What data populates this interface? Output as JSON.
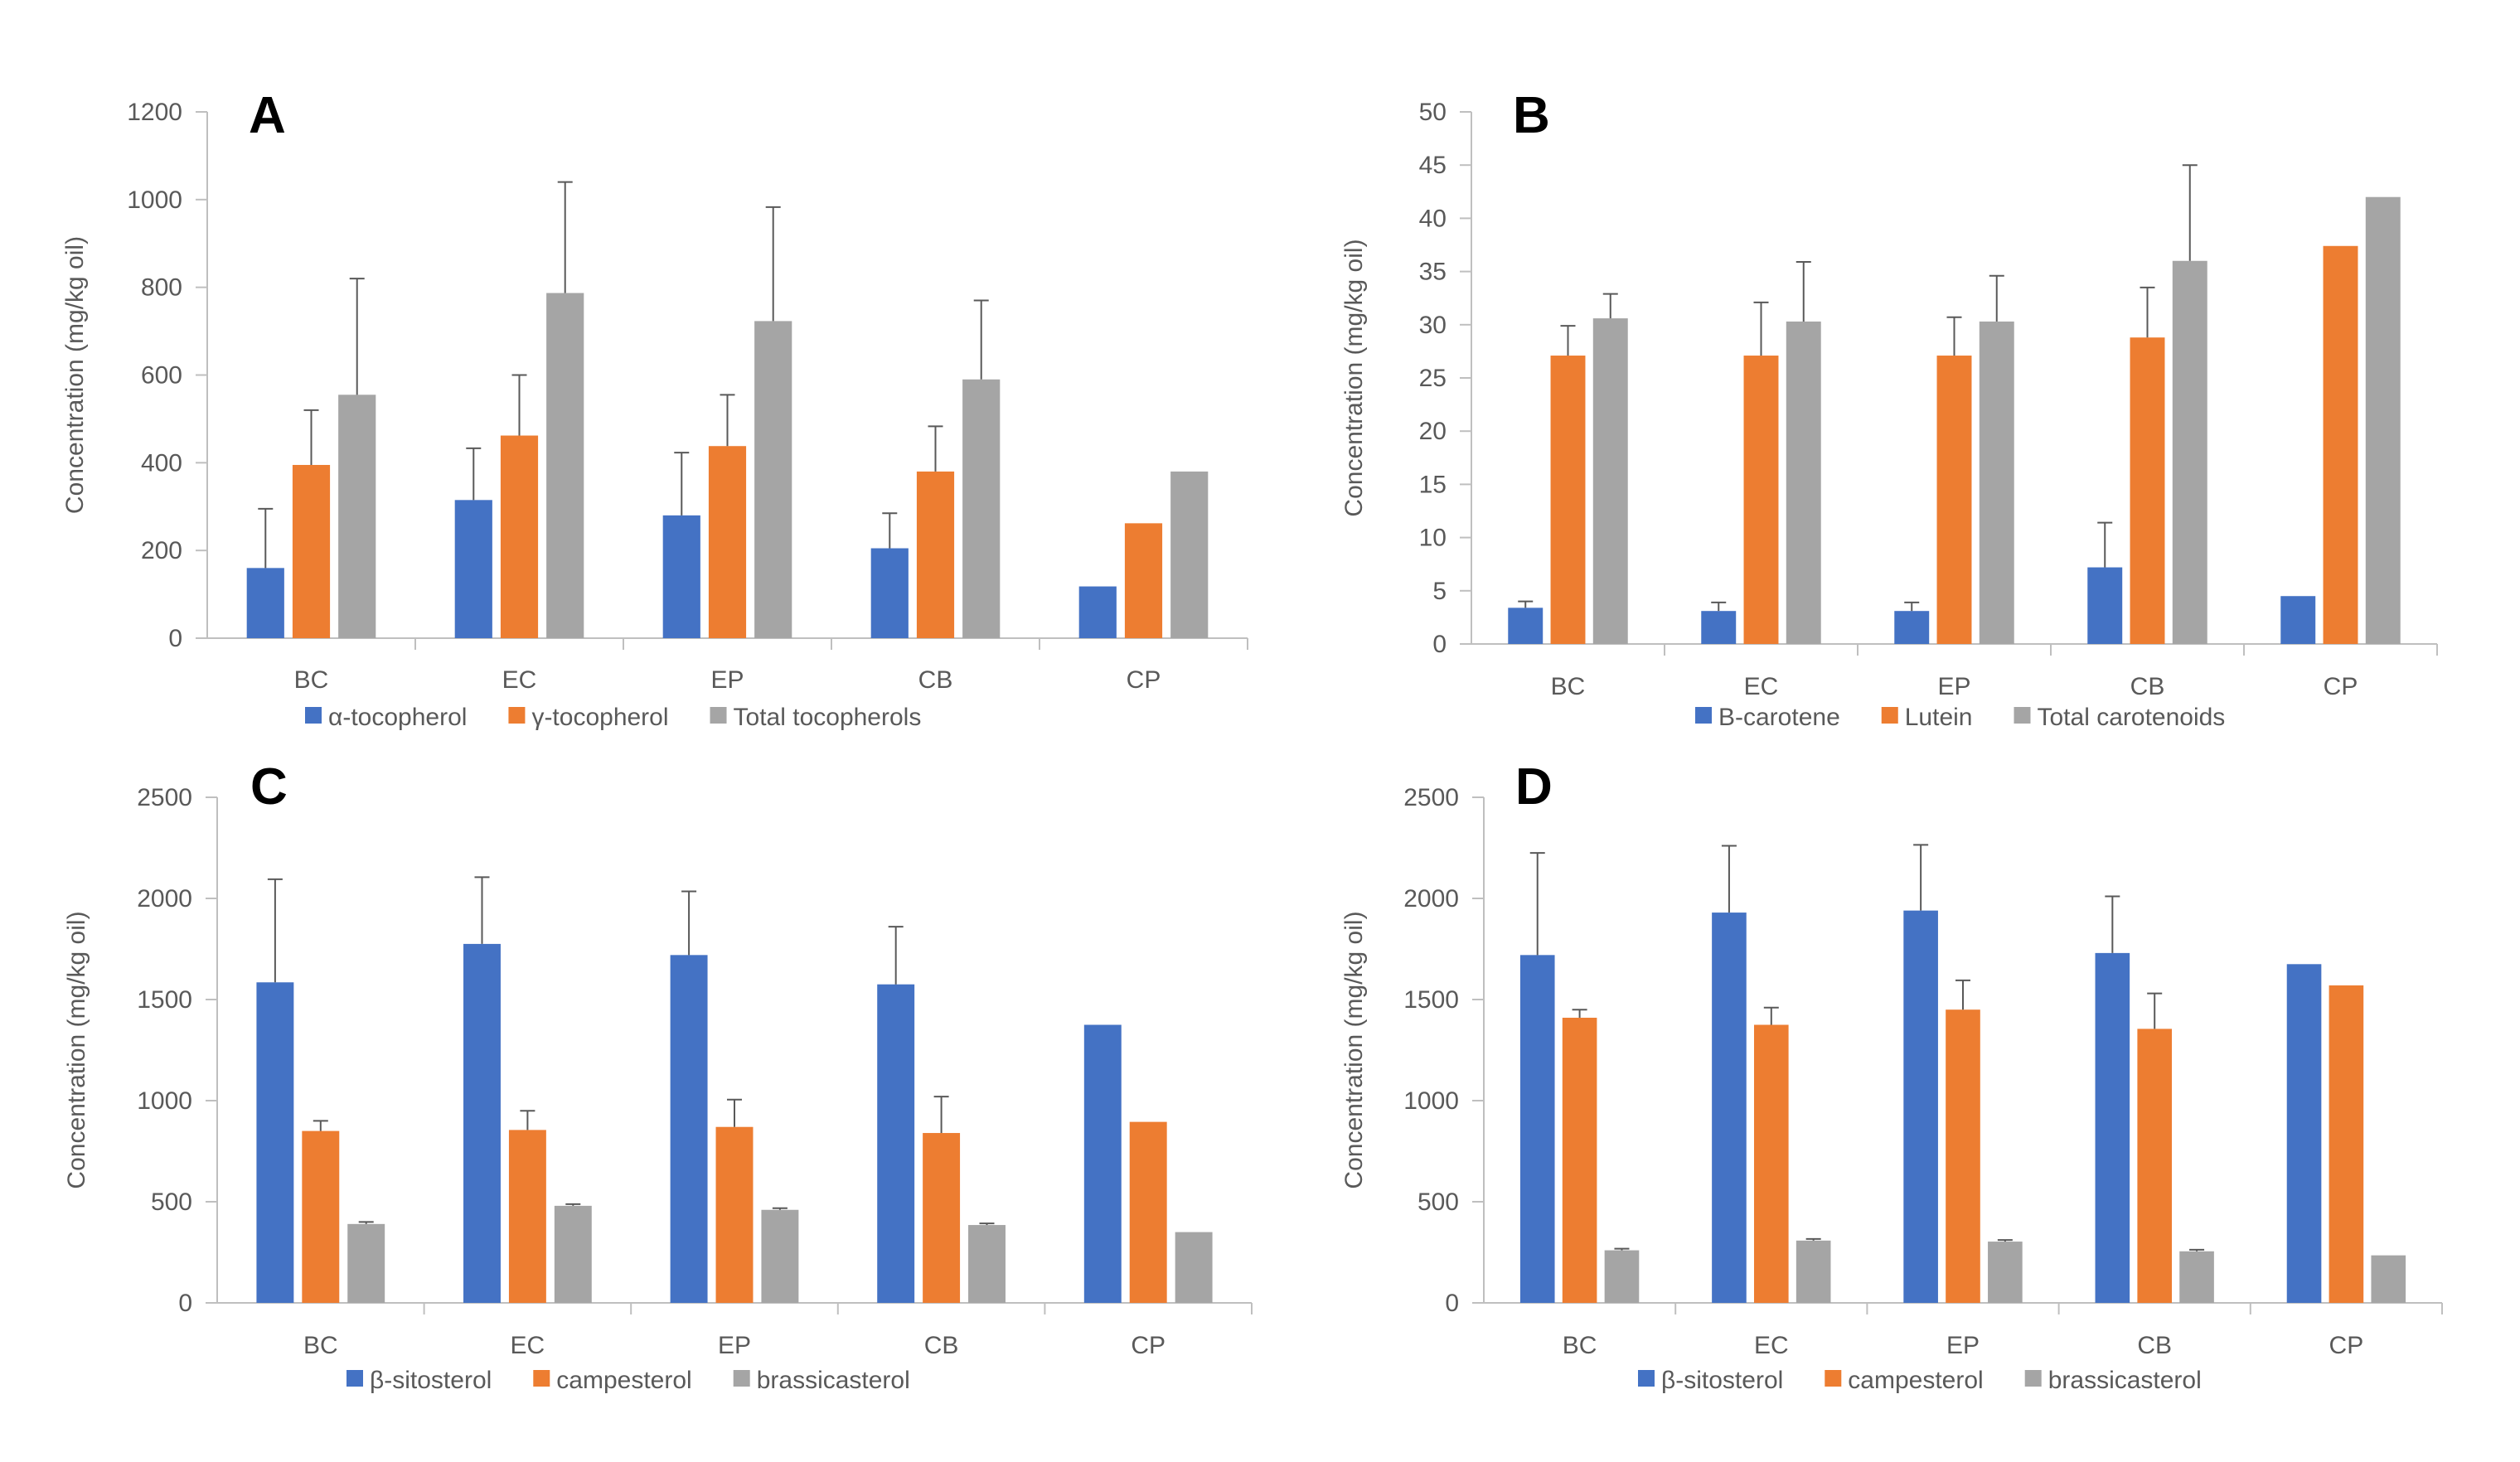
{
  "colors": {
    "blue": "#4472C4",
    "orange": "#ED7D31",
    "gray": "#A5A5A5",
    "axis": "#BFBFBF",
    "text": "#595959",
    "errorbar": "#595959"
  },
  "chart_data": [
    {
      "panel": "A",
      "type": "bar",
      "ylabel": "Concentration (mg/kg oil)",
      "ylim": [
        0,
        1200
      ],
      "yticks": [
        "0",
        "200",
        "400",
        "600",
        "800",
        "1000",
        "1200"
      ],
      "categories": [
        "BC",
        "EC",
        "EP",
        "CB",
        "CP"
      ],
      "legend_position": "bottom",
      "series": [
        {
          "name": "α-tocopherol",
          "color": "#4472C4",
          "values": [
            160,
            315,
            280,
            205,
            118
          ],
          "errors": [
            135,
            118,
            143,
            80,
            null
          ]
        },
        {
          "name": "γ-tocopherol",
          "color": "#ED7D31",
          "values": [
            395,
            462,
            438,
            380,
            262
          ],
          "errors": [
            125,
            138,
            117,
            103,
            null
          ]
        },
        {
          "name": "Total tocopherols",
          "color": "#A5A5A5",
          "values": [
            555,
            787,
            723,
            590,
            380
          ],
          "errors": [
            265,
            253,
            260,
            180,
            null
          ]
        }
      ]
    },
    {
      "panel": "B",
      "type": "bar",
      "ylabel": "Concentration (mg/kg oil)",
      "ylim": [
        0,
        50
      ],
      "yticks": [
        "0",
        "5",
        "10",
        "15",
        "20",
        "25",
        "30",
        "35",
        "40",
        "45",
        "50"
      ],
      "categories": [
        "BC",
        "EC",
        "EP",
        "CB",
        "CP"
      ],
      "legend_position": "bottom",
      "series": [
        {
          "name": "Β-carotene",
          "color": "#4472C4",
          "values": [
            3.4,
            3.1,
            3.1,
            7.2,
            4.5
          ],
          "errors": [
            0.6,
            0.8,
            0.8,
            4.2,
            null
          ]
        },
        {
          "name": "Lutein",
          "color": "#ED7D31",
          "values": [
            27.1,
            27.1,
            27.1,
            28.8,
            37.4
          ],
          "errors": [
            2.8,
            5.0,
            3.6,
            4.7,
            null
          ]
        },
        {
          "name": "Total carotenoids",
          "color": "#A5A5A5",
          "values": [
            30.6,
            30.3,
            30.3,
            36.0,
            42.0
          ],
          "errors": [
            2.3,
            5.6,
            4.3,
            9.0,
            null
          ]
        }
      ]
    },
    {
      "panel": "C",
      "type": "bar",
      "ylabel": "Concentration (mg/kg oil)",
      "ylim": [
        0,
        2500
      ],
      "yticks": [
        "0",
        "500",
        "1000",
        "1500",
        "2000",
        "2500"
      ],
      "categories": [
        "BC",
        "EC",
        "EP",
        "CB",
        "CP"
      ],
      "legend_position": "bottom",
      "series": [
        {
          "name": "β-sitosterol",
          "color": "#4472C4",
          "values": [
            1585,
            1775,
            1720,
            1575,
            1375
          ],
          "errors": [
            510,
            330,
            315,
            285,
            null
          ]
        },
        {
          "name": "campesterol",
          "color": "#ED7D31",
          "values": [
            850,
            855,
            870,
            840,
            895
          ],
          "errors": [
            50,
            95,
            135,
            180,
            null
          ]
        },
        {
          "name": "brassicasterol",
          "color": "#A5A5A5",
          "values": [
            390,
            480,
            460,
            385,
            350
          ],
          "errors": [
            10,
            8,
            8,
            8,
            null
          ]
        }
      ]
    },
    {
      "panel": "D",
      "type": "bar",
      "ylabel": "Concentration (mg/kg oil)",
      "ylim": [
        0,
        2500
      ],
      "yticks": [
        "0",
        "500",
        "1000",
        "1500",
        "2000",
        "2500"
      ],
      "categories": [
        "BC",
        "EC",
        "EP",
        "CB",
        "CP"
      ],
      "legend_position": "bottom",
      "series": [
        {
          "name": "β-sitosterol",
          "color": "#4472C4",
          "values": [
            1720,
            1930,
            1940,
            1730,
            1675
          ],
          "errors": [
            505,
            330,
            325,
            280,
            null
          ]
        },
        {
          "name": "campesterol",
          "color": "#ED7D31",
          "values": [
            1410,
            1375,
            1450,
            1355,
            1570
          ],
          "errors": [
            40,
            85,
            145,
            175,
            null
          ]
        },
        {
          "name": "brassicasterol",
          "color": "#A5A5A5",
          "values": [
            260,
            308,
            303,
            255,
            235
          ],
          "errors": [
            8,
            8,
            8,
            8,
            null
          ]
        }
      ]
    }
  ]
}
